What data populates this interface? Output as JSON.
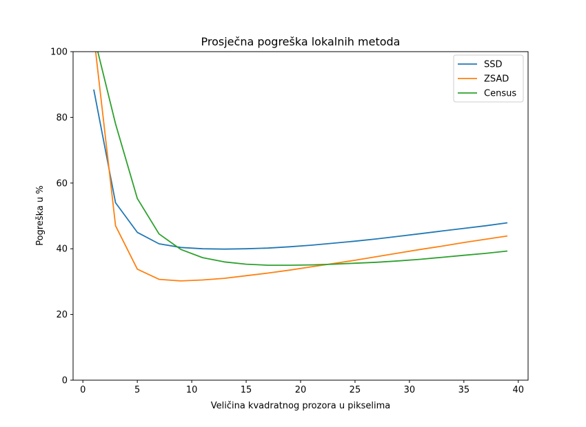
{
  "chart_data": {
    "type": "line",
    "title": "Prosječna pogreška lokalnih metoda",
    "xlabel": "Veličina kvadratnog prozora u pikselima",
    "ylabel": "Pogreška u %",
    "xlim": [
      -0.9,
      40.9
    ],
    "ylim": [
      0,
      100
    ],
    "xticks": [
      0,
      5,
      10,
      15,
      20,
      25,
      30,
      35,
      40
    ],
    "yticks": [
      0,
      20,
      40,
      60,
      80,
      100
    ],
    "grid": false,
    "legend_position": "top-right",
    "series": [
      {
        "name": "SSD",
        "color": "#1f77b4",
        "x": [
          1,
          3,
          5,
          7,
          9,
          11,
          13,
          15,
          17,
          19,
          21,
          23,
          25,
          27,
          29,
          31,
          33,
          35,
          37,
          39
        ],
        "y": [
          88.5,
          54.0,
          45.0,
          41.5,
          40.4,
          40.0,
          39.9,
          40.0,
          40.2,
          40.6,
          41.1,
          41.7,
          42.3,
          43.0,
          43.8,
          44.6,
          45.4,
          46.2,
          47.0,
          47.9
        ]
      },
      {
        "name": "ZSAD",
        "color": "#ff7f0e",
        "x": [
          1,
          3,
          5,
          7,
          9,
          11,
          13,
          15,
          17,
          19,
          21,
          23,
          25,
          27,
          29,
          31,
          33,
          35,
          37,
          39
        ],
        "y": [
          105.0,
          47.0,
          33.8,
          30.7,
          30.2,
          30.5,
          31.0,
          31.8,
          32.6,
          33.5,
          34.5,
          35.5,
          36.5,
          37.6,
          38.7,
          39.8,
          40.8,
          41.9,
          42.9,
          43.9
        ]
      },
      {
        "name": "Census",
        "color": "#2ca02c",
        "x": [
          1,
          3,
          5,
          7,
          9,
          11,
          13,
          15,
          17,
          19,
          21,
          23,
          25,
          27,
          29,
          31,
          33,
          35,
          37,
          39
        ],
        "y": [
          105.0,
          78.0,
          55.3,
          44.5,
          39.8,
          37.3,
          36.0,
          35.3,
          35.0,
          35.0,
          35.1,
          35.3,
          35.6,
          35.9,
          36.3,
          36.8,
          37.4,
          38.0,
          38.6,
          39.3
        ]
      }
    ]
  }
}
